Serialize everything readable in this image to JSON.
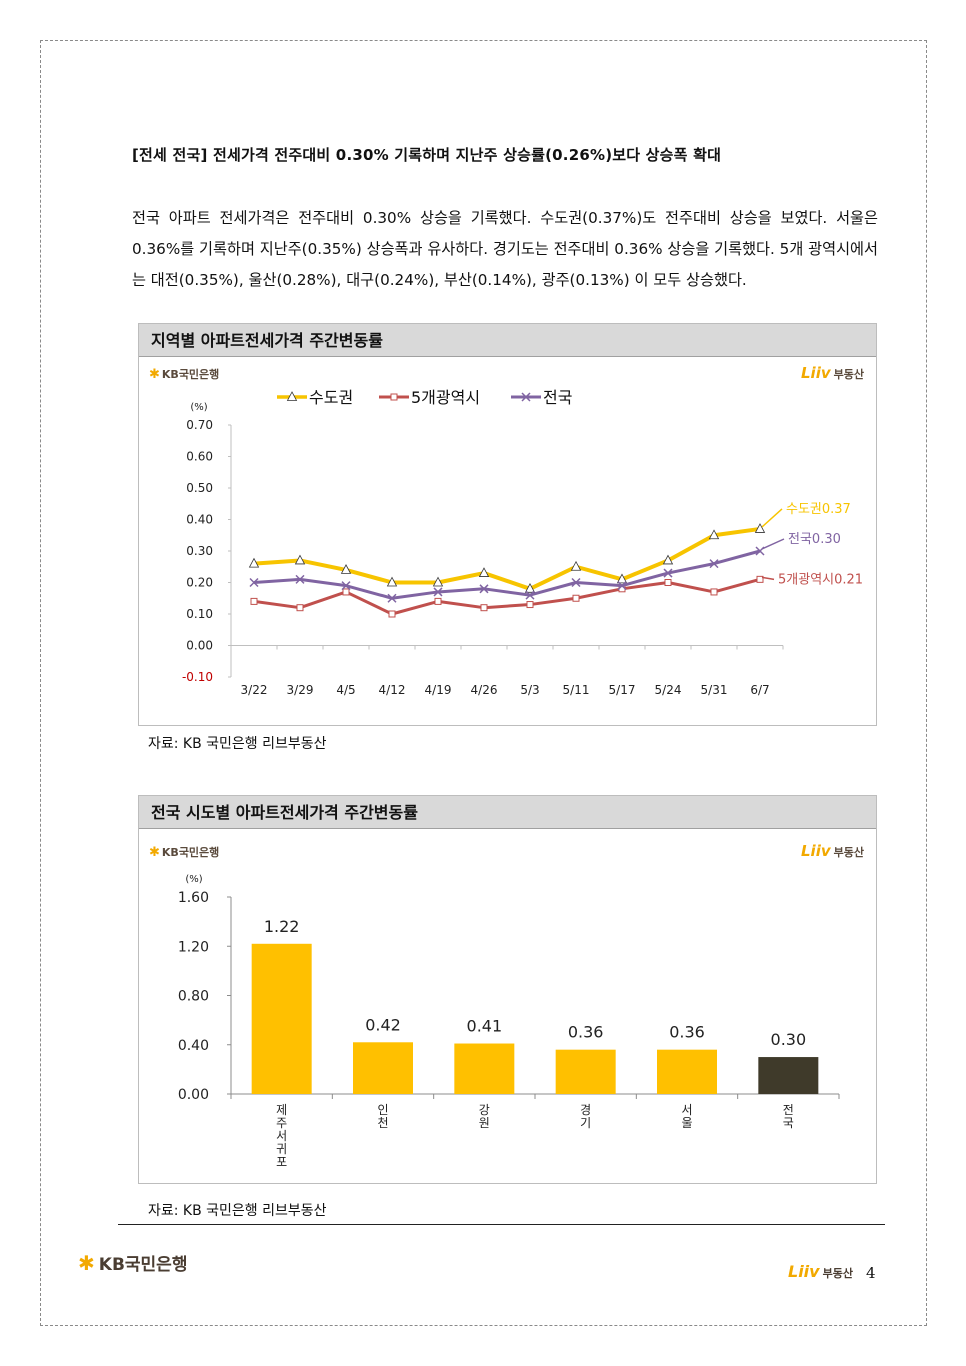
{
  "heading": "[전세 전국] 전세가격 전주대비 0.30% 기록하며 지난주 상승률(0.26%)보다 상승폭 확대",
  "paragraph": "전국 아파트 전세가격은 전주대비 0.30% 상승을 기록했다. 수도권(0.37%)도 전주대비 상승을 보였다. 서울은 0.36%를 기록하며 지난주(0.35%) 상승폭과 유사하다. 경기도는 전주대비 0.36% 상승을 기록했다. 5개 광역시에서는 대전(0.35%), 울산(0.28%), 대구(0.24%), 부산(0.14%), 광주(0.13%) 이 모두 상승했다.",
  "brand": {
    "kb": "KB국민은행",
    "liiv_mark": "Liiv",
    "liiv_sub": "부동산"
  },
  "source_label": "자료: KB 국민은행 리브부동산",
  "page_number": "4",
  "colors": {
    "capital": "#f7c400",
    "metro": "#c0504d",
    "nation": "#8064a2",
    "bar": "#ffc000",
    "bar_highlight": "#3f3a2a"
  },
  "chart1": {
    "title": "지역별 아파트전세가격 주간변동률"
  },
  "chart2": {
    "title": "전국 시도별 아파트전세가격 주간변동률"
  },
  "chart_data": [
    {
      "type": "line",
      "title": "지역별 아파트전세가격 주간변동률",
      "ylabel": "(%)",
      "ylim": [
        -0.1,
        0.7
      ],
      "yticks": [
        "0.70",
        "0.60",
        "0.50",
        "0.40",
        "0.30",
        "0.20",
        "0.10",
        "0.00",
        "-0.10"
      ],
      "categories": [
        "3/22",
        "3/29",
        "4/5",
        "4/12",
        "4/19",
        "4/26",
        "5/3",
        "5/11",
        "5/17",
        "5/24",
        "5/31",
        "6/7"
      ],
      "legend_position": "top",
      "series": [
        {
          "name": "수도권",
          "values": [
            0.26,
            0.27,
            0.24,
            0.2,
            0.2,
            0.23,
            0.18,
            0.25,
            0.21,
            0.27,
            0.35,
            0.37
          ],
          "end_label": "수도권0.37"
        },
        {
          "name": "5개광역시",
          "values": [
            0.14,
            0.12,
            0.17,
            0.1,
            0.14,
            0.12,
            0.13,
            0.15,
            0.18,
            0.2,
            0.17,
            0.21
          ],
          "end_label": "5개광역시0.21"
        },
        {
          "name": "전국",
          "values": [
            0.2,
            0.21,
            0.19,
            0.15,
            0.17,
            0.18,
            0.16,
            0.2,
            0.19,
            0.23,
            0.26,
            0.3
          ],
          "end_label": "전국0.30"
        }
      ]
    },
    {
      "type": "bar",
      "title": "전국 시도별 아파트전세가격 주간변동률",
      "ylabel": "(%)",
      "ylim": [
        0,
        1.6
      ],
      "yticks": [
        "1.60",
        "1.20",
        "0.80",
        "0.40",
        "0.00"
      ],
      "categories": [
        "제주서귀포",
        "인천",
        "강원",
        "경기",
        "서울",
        "전국"
      ],
      "values": [
        1.22,
        0.42,
        0.41,
        0.36,
        0.36,
        0.3
      ],
      "value_labels": [
        "1.22",
        "0.42",
        "0.41",
        "0.36",
        "0.36",
        "0.30"
      ]
    }
  ]
}
